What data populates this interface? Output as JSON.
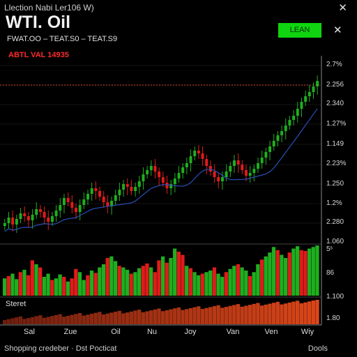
{
  "header": {
    "subtitle": "Llection Nabi Ler106 W)",
    "title": "WTI. Oil",
    "ohlc_text": "FWAT.OO – TEAT.S0 – TEAT.S9",
    "alert_label": "ABTL VAL 14935",
    "lean_button": "LEAN",
    "close_icon_char": "✕"
  },
  "colors": {
    "up": "#1fae1f",
    "down": "#e01b1b",
    "ma_line": "#2a4fb8",
    "alert_line": "#d94a2a",
    "accent": "#0fd40f"
  },
  "price_axis": [
    "2.7%",
    "2.256",
    "2.340",
    "1.27%",
    "1.149",
    "2.23%",
    "1.250",
    "1.2%",
    "2.280",
    "1.060"
  ],
  "volume_axis": [
    "5ˢ",
    "86",
    "1.100"
  ],
  "indicator_axis": [
    "1.80"
  ],
  "x_axis": [
    "Sal",
    "Zue",
    "Oil",
    "Nu",
    "Joy",
    "Van",
    "Ven",
    "Wiy"
  ],
  "indicator_label": "Steret",
  "footer": {
    "left": "Shopping credeber · Dst Pocticat",
    "right": "Dools"
  },
  "chart_data": {
    "type": "candlestick",
    "series_close": [
      20,
      24,
      19,
      23,
      27,
      25,
      22,
      26,
      30,
      28,
      24,
      21,
      25,
      29,
      33,
      38,
      35,
      31,
      28,
      33,
      37,
      41,
      45,
      43,
      39,
      35,
      32,
      36,
      40,
      44,
      48,
      46,
      43,
      46,
      50,
      55,
      58,
      61,
      57,
      53,
      49,
      45,
      48,
      52,
      56,
      60,
      63,
      68,
      72,
      70,
      66,
      61,
      57,
      53,
      50,
      53,
      57,
      61,
      65,
      62,
      58,
      54,
      56,
      59,
      63,
      67,
      71,
      75,
      79,
      83,
      86,
      90,
      94,
      97,
      102,
      107,
      111,
      114,
      118,
      122
    ],
    "volume": [
      22,
      25,
      28,
      21,
      30,
      33,
      26,
      45,
      40,
      36,
      24,
      28,
      20,
      22,
      27,
      24,
      18,
      22,
      34,
      30,
      20,
      26,
      32,
      29,
      36,
      40,
      48,
      50,
      44,
      38,
      36,
      33,
      28,
      30,
      35,
      38,
      41,
      36,
      30,
      45,
      50,
      42,
      48,
      60,
      56,
      52,
      38,
      35,
      30,
      26,
      28,
      30,
      32,
      36,
      28,
      24,
      30,
      34,
      38,
      40,
      36,
      32,
      25,
      30,
      40,
      46,
      50,
      55,
      62,
      58,
      52,
      48,
      55,
      60,
      63,
      58,
      57,
      60,
      62,
      64
    ],
    "volume_up": [
      1,
      0,
      1,
      1,
      0,
      1,
      0,
      0,
      1,
      0,
      1,
      1,
      0,
      1,
      1,
      0,
      1,
      0,
      0,
      1,
      1,
      0,
      1,
      0,
      1,
      1,
      0,
      1,
      1,
      0,
      1,
      1,
      0,
      1,
      1,
      0,
      0,
      1,
      0,
      0,
      1,
      0,
      1,
      1,
      0,
      0,
      1,
      0,
      1,
      1,
      0,
      1,
      1,
      0,
      1,
      1,
      0,
      1,
      1,
      0,
      1,
      1,
      0,
      1,
      1,
      0,
      1,
      1,
      1,
      0,
      1,
      1,
      0,
      1,
      1,
      0,
      0,
      1,
      1,
      1
    ],
    "alert_level": 2.256
  }
}
